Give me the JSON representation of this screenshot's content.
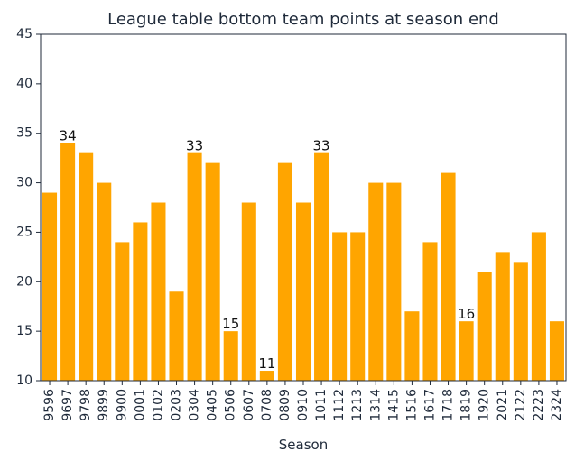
{
  "chart_data": {
    "type": "bar",
    "title": "League table bottom team points at season end",
    "xlabel": "Season",
    "ylabel": "",
    "ylim": [
      10,
      45
    ],
    "yticks": [
      10,
      15,
      20,
      25,
      30,
      35,
      40,
      45
    ],
    "grid": false,
    "bar_color": "#FFA500",
    "categories": [
      "9596",
      "9697",
      "9798",
      "9899",
      "9900",
      "0001",
      "0102",
      "0203",
      "0304",
      "0405",
      "0506",
      "0607",
      "0708",
      "0809",
      "0910",
      "1011",
      "1112",
      "1213",
      "1314",
      "1415",
      "1516",
      "1617",
      "1718",
      "1819",
      "1920",
      "2021",
      "2122",
      "2223",
      "2324"
    ],
    "values": [
      29,
      34,
      33,
      30,
      24,
      26,
      28,
      19,
      33,
      32,
      15,
      28,
      11,
      32,
      28,
      33,
      25,
      25,
      30,
      30,
      17,
      24,
      31,
      16,
      21,
      23,
      22,
      25,
      16
    ],
    "data_labels": [
      {
        "category": "9697",
        "text": "34"
      },
      {
        "category": "0304",
        "text": "33"
      },
      {
        "category": "0506",
        "text": "15"
      },
      {
        "category": "0708",
        "text": "11"
      },
      {
        "category": "1011",
        "text": "33"
      },
      {
        "category": "1819",
        "text": "16"
      }
    ]
  }
}
